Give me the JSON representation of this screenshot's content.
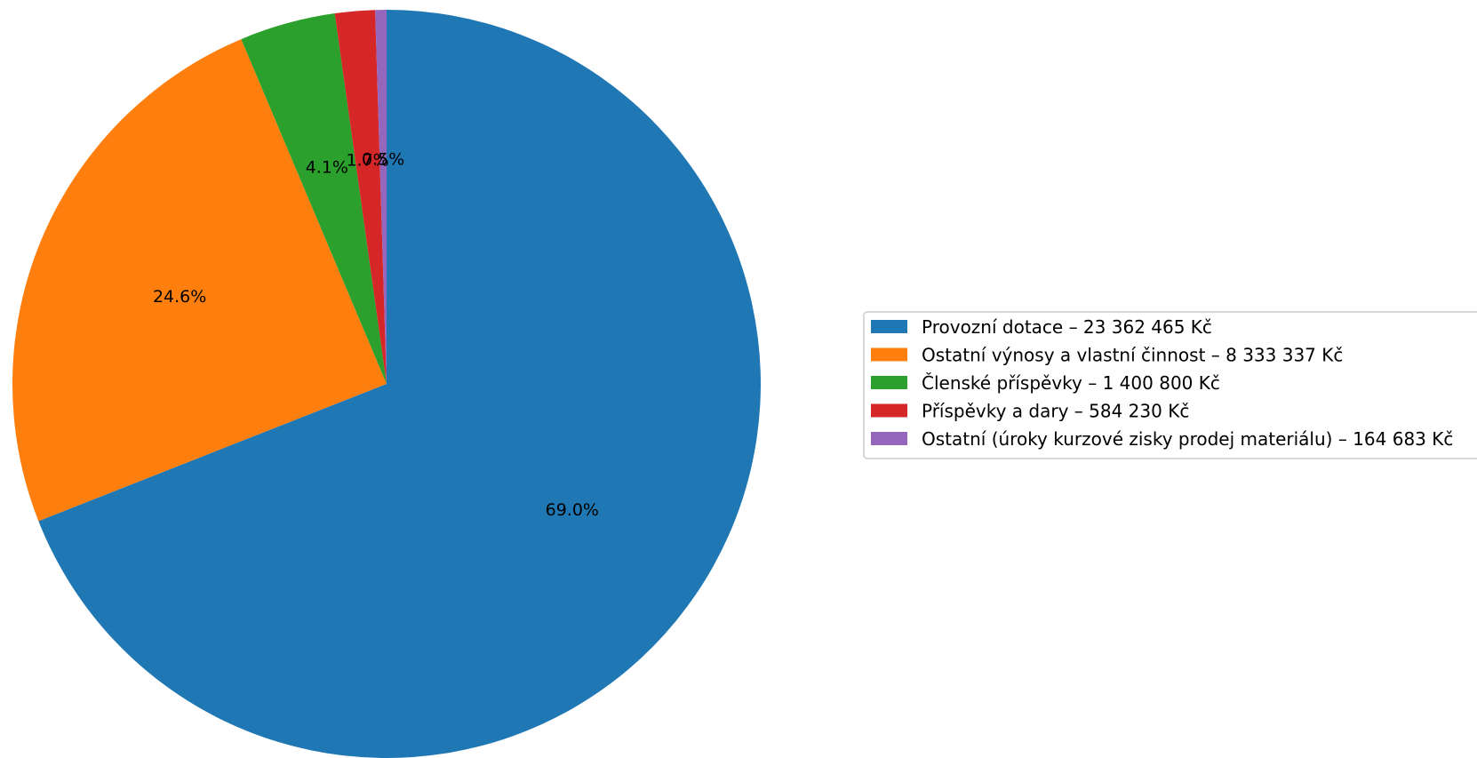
{
  "chart_data": {
    "type": "pie",
    "start_angle_deg": 90,
    "direction": "clockwise",
    "legend_position": "right",
    "slices": [
      {
        "label": "Provozní dotace – 23 362 465 Kč",
        "value": 23362465,
        "pct_label": "69.0%",
        "color": "#1f77b4"
      },
      {
        "label": "Ostatní výnosy a vlastní činnost – 8 333 337 Kč",
        "value": 8333337,
        "pct_label": "24.6%",
        "color": "#ff7f0e"
      },
      {
        "label": "Členské příspěvky – 1 400 800 Kč",
        "value": 1400800,
        "pct_label": "4.1%",
        "color": "#2ca02c"
      },
      {
        "label": "Příspěvky a dary – 584 230 Kč",
        "value": 584230,
        "pct_label": "1.7%",
        "color": "#d62728"
      },
      {
        "label": "Ostatní (úroky  kurzové zisky  prodej materiálu) – 164 683 Kč",
        "value": 164683,
        "pct_label": "0.5%",
        "color": "#9467bd"
      }
    ]
  }
}
